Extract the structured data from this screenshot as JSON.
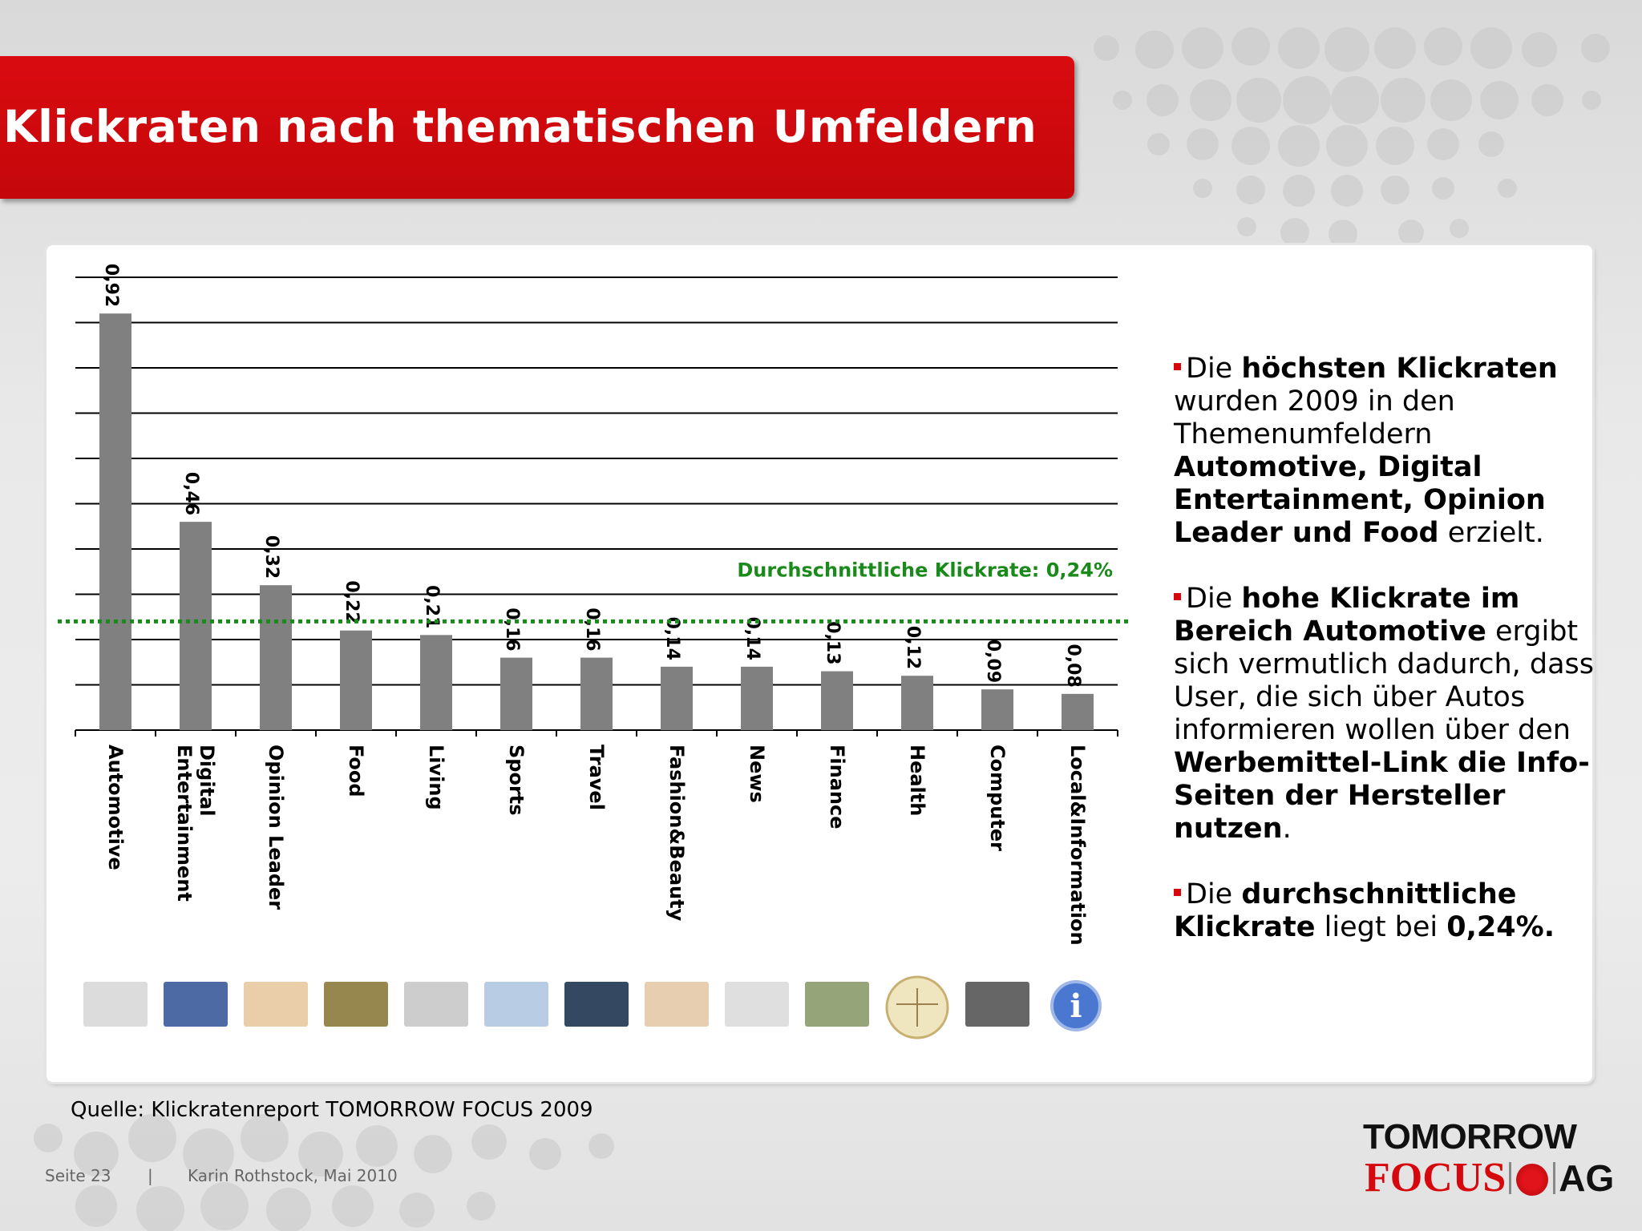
{
  "slide": {
    "title": "Klickraten nach thematischen Umfeldern",
    "source": "Quelle: Klickratenreport TOMORROW FOCUS 2009",
    "footer_page": "Seite 23",
    "footer_sep": "|",
    "footer_author": "Karin Rothstock, Mai 2010"
  },
  "logo": {
    "line1": "TOMORROW",
    "line2": "FOCUS",
    "line2_suffix": "AG"
  },
  "colors": {
    "accent": "#d7080d",
    "bar": "#808080",
    "average_line": "#1a8a1a"
  },
  "bullets": [
    {
      "parts": [
        {
          "t": "Die ",
          "b": false
        },
        {
          "t": "höchsten Klickraten",
          "b": true
        },
        {
          "t": " wurden 2009 in den Themenumfeldern ",
          "b": false
        },
        {
          "t": "Automotive, Digital Entertainment, Opinion Leader und Food",
          "b": true
        },
        {
          "t": " erzielt.",
          "b": false
        }
      ]
    },
    {
      "parts": [
        {
          "t": "Die ",
          "b": false
        },
        {
          "t": "hohe Klickrate im Bereich Automotive",
          "b": true
        },
        {
          "t": " ergibt sich vermutlich dadurch, dass User, die sich über Autos informieren wollen über den ",
          "b": false
        },
        {
          "t": "Werbemittel-Link die Info-Seiten der Hersteller nutzen",
          "b": true
        },
        {
          "t": ".",
          "b": false
        }
      ]
    },
    {
      "parts": [
        {
          "t": "Die ",
          "b": false
        },
        {
          "t": "durchschnittliche Klickrate",
          "b": true
        },
        {
          "t": " liegt bei ",
          "b": false
        },
        {
          "t": "0,24%.",
          "b": true
        }
      ]
    }
  ],
  "chart_data": {
    "type": "bar",
    "title": "",
    "xlabel": "",
    "ylabel": "",
    "ylim": [
      0,
      1.0
    ],
    "grid": true,
    "categories": [
      "Automotive",
      "Digital Entertainment",
      "Opinion Leader",
      "Food",
      "Living",
      "Sports",
      "Travel",
      "Fashion&Beauty",
      "News",
      "Finance",
      "Health",
      "Computer",
      "Local&Information"
    ],
    "values": [
      0.92,
      0.46,
      0.32,
      0.22,
      0.21,
      0.16,
      0.16,
      0.14,
      0.14,
      0.13,
      0.12,
      0.09,
      0.08
    ],
    "data_labels": [
      "0,92",
      "0,46",
      "0,32",
      "0,22",
      "0,21",
      "0,16",
      "0,16",
      "0,14",
      "0,14",
      "0,13",
      "0,12",
      "0,09",
      "0,08"
    ],
    "average": 0.24,
    "average_label": "Durchschnittliche Klickrate: 0,24%",
    "category_icons": [
      "car-icon",
      "tv-icon",
      "person-laptop-icon",
      "food-icon",
      "living-room-icon",
      "fitness-icon",
      "beach-sunset-icon",
      "spa-icon",
      "newspaper-icon",
      "money-icon",
      "vitruvian-man-icon",
      "laptop-icon",
      "info-icon"
    ]
  }
}
